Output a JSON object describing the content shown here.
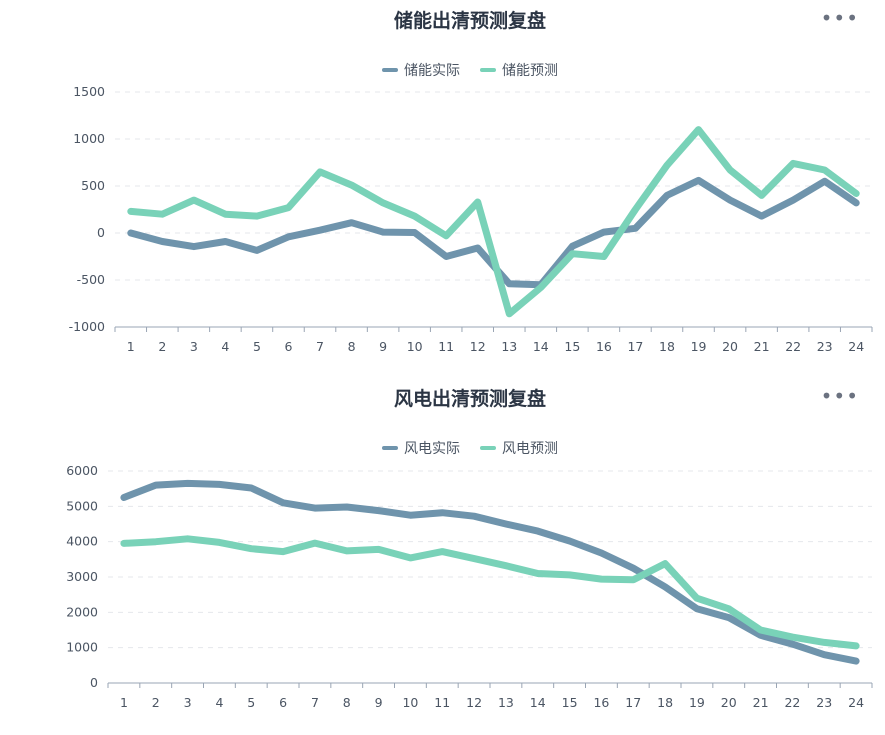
{
  "chart_data": [
    {
      "type": "line",
      "title": "储能出清预测复盘",
      "categories": [
        "1",
        "2",
        "3",
        "4",
        "5",
        "6",
        "7",
        "8",
        "9",
        "10",
        "11",
        "12",
        "13",
        "14",
        "15",
        "16",
        "17",
        "18",
        "19",
        "20",
        "21",
        "22",
        "23",
        "24"
      ],
      "series": [
        {
          "name": "储能实际",
          "color": "#6f94ac",
          "values": [
            0,
            -90,
            -145,
            -90,
            -185,
            -40,
            30,
            110,
            10,
            5,
            -250,
            -160,
            -540,
            -550,
            -140,
            10,
            50,
            400,
            560,
            350,
            180,
            350,
            550,
            320
          ]
        },
        {
          "name": "储能预测",
          "color": "#79d2b8",
          "values": [
            230,
            200,
            350,
            200,
            180,
            270,
            650,
            510,
            320,
            180,
            -30,
            330,
            -860,
            -580,
            -220,
            -250,
            250,
            720,
            1100,
            670,
            400,
            740,
            670,
            420
          ]
        }
      ],
      "ylim": [
        -1000,
        1500
      ],
      "yticks": [
        -1000,
        -500,
        0,
        500,
        1000,
        1500
      ],
      "grid": true,
      "legend": "top-center"
    },
    {
      "type": "line",
      "title": "风电出清预测复盘",
      "categories": [
        "1",
        "2",
        "3",
        "4",
        "5",
        "6",
        "7",
        "8",
        "9",
        "10",
        "11",
        "12",
        "13",
        "14",
        "15",
        "16",
        "17",
        "18",
        "19",
        "20",
        "21",
        "22",
        "23",
        "24"
      ],
      "series": [
        {
          "name": "风电实际",
          "color": "#6f94ac",
          "values": [
            5250,
            5600,
            5650,
            5620,
            5520,
            5100,
            4950,
            4980,
            4880,
            4750,
            4820,
            4720,
            4500,
            4300,
            4020,
            3680,
            3250,
            2720,
            2100,
            1850,
            1350,
            1100,
            800,
            620
          ]
        },
        {
          "name": "风电预测",
          "color": "#79d2b8",
          "values": [
            3950,
            4000,
            4080,
            3980,
            3800,
            3720,
            3960,
            3740,
            3780,
            3540,
            3720,
            3520,
            3320,
            3100,
            3060,
            2940,
            2920,
            3380,
            2400,
            2100,
            1500,
            1300,
            1150,
            1050
          ]
        }
      ],
      "ylim": [
        0,
        6000
      ],
      "yticks": [
        0,
        1000,
        2000,
        3000,
        4000,
        5000,
        6000
      ],
      "grid": true,
      "legend": "top-center"
    }
  ]
}
